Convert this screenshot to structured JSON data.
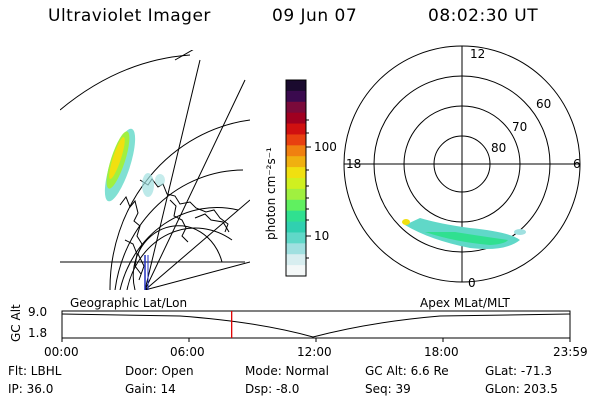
{
  "header": {
    "instrument": "Ultraviolet Imager",
    "date": "09 Jun 07",
    "time": "08:02:30 UT"
  },
  "colorbar": {
    "label": "photon cm⁻²s⁻¹",
    "ticks": [
      "100",
      "10"
    ],
    "colors": [
      "#1a0a2e",
      "#3a0a4e",
      "#7a0a3a",
      "#a00020",
      "#d01010",
      "#e84010",
      "#f08010",
      "#f0b010",
      "#f0e010",
      "#d0f020",
      "#a0f040",
      "#60f060",
      "#30e090",
      "#30d0b0",
      "#60d8c8",
      "#a0e0e0",
      "#d8eef0",
      "#f4f8f8"
    ]
  },
  "polar_plot": {
    "mlt_labels": [
      "12",
      "18",
      "6",
      "0"
    ],
    "lat_labels": [
      "60",
      "70",
      "80"
    ]
  },
  "timeline": {
    "left_label": "Geographic Lat/Lon",
    "right_label": "Apex MLat/MLT",
    "axis_title": "GC Alt",
    "y_ticks": [
      "9.0",
      "1.8"
    ],
    "x_ticks": [
      "00:00",
      "06:00",
      "12:00",
      "18:00",
      "23:59"
    ],
    "marker_color": "#e00000",
    "current_time_fraction": 0.334
  },
  "info": {
    "filter": "Flt: LBHL",
    "ip": "IP: 36.0",
    "door": "Door: Open",
    "gain": "Gain: 14",
    "mode": "Mode: Normal",
    "dsp": "Dsp:    -8.0",
    "gc_alt": "GC Alt: 6.6 Re",
    "seq": "Seq: 39",
    "glat": "GLat: -71.3",
    "glon": "GLon: 203.5"
  }
}
